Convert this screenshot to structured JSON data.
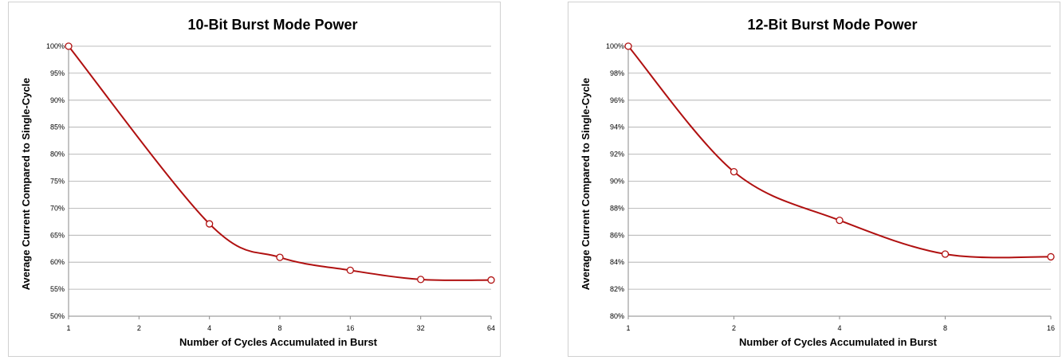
{
  "chart_data": [
    {
      "type": "line",
      "title": "10-Bit Burst Mode Power",
      "xlabel": "Number of Cycles Accumulated in Burst",
      "ylabel": "Average Current Compared to Single-Cycle",
      "x_scale": "log2",
      "categories": [
        "1",
        "2",
        "4",
        "8",
        "16",
        "32",
        "64"
      ],
      "x": [
        1,
        4,
        8,
        16,
        32,
        64
      ],
      "yticks": [
        "50%",
        "55%",
        "60%",
        "65%",
        "70%",
        "75%",
        "80%",
        "85%",
        "90%",
        "95%",
        "100%"
      ],
      "ylim": [
        50,
        100
      ],
      "grid": true,
      "series": [
        {
          "values": [
            100,
            67.1,
            60.9,
            58.5,
            56.8,
            56.7
          ],
          "color": "#b01010"
        }
      ]
    },
    {
      "type": "line",
      "title": "12-Bit Burst Mode Power",
      "xlabel": "Number of Cycles Accumulated in Burst",
      "ylabel": "Average Current Compared to Single-Cycle",
      "x_scale": "log2",
      "categories": [
        "1",
        "2",
        "4",
        "8",
        "16"
      ],
      "x": [
        1,
        2,
        4,
        8,
        16
      ],
      "yticks": [
        "80%",
        "82%",
        "84%",
        "86%",
        "88%",
        "90%",
        "92%",
        "94%",
        "96%",
        "98%",
        "100%"
      ],
      "ylim": [
        80,
        100
      ],
      "grid": true,
      "series": [
        {
          "values": [
            100,
            90.7,
            87.1,
            84.6,
            84.4
          ],
          "color": "#b01010"
        }
      ]
    }
  ]
}
